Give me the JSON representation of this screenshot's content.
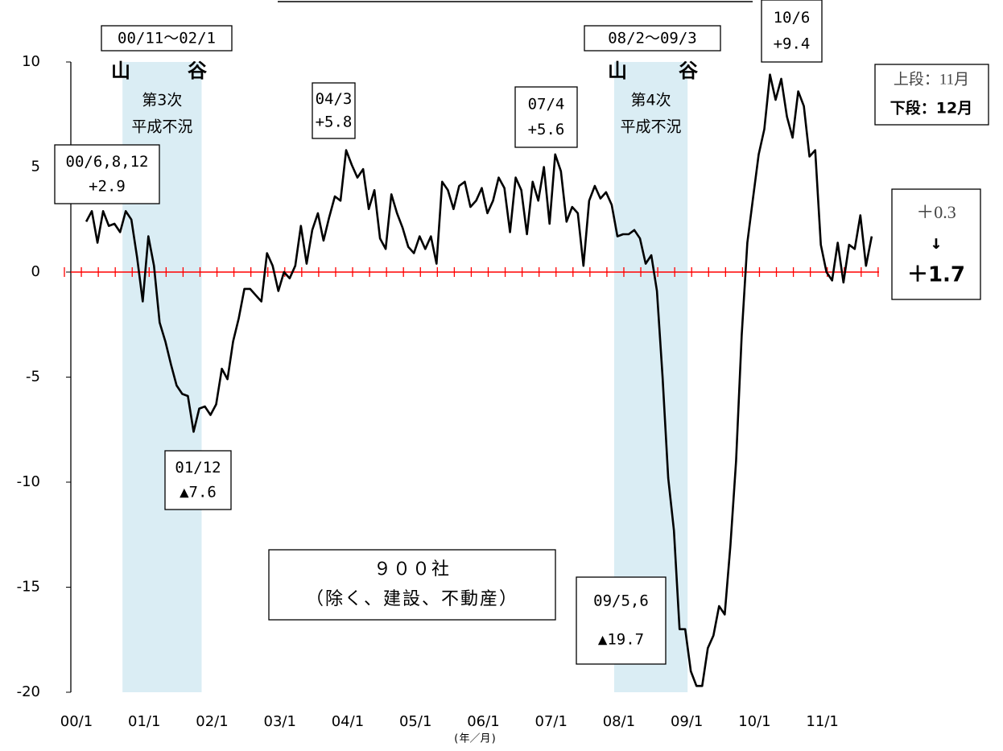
{
  "chart_data": {
    "type": "line",
    "categories": [
      "00/1",
      null,
      null,
      null,
      null,
      null,
      null,
      null,
      null,
      null,
      null,
      null,
      "01/1",
      null,
      null,
      null,
      null,
      null,
      null,
      null,
      null,
      null,
      null,
      null,
      "02/1",
      null,
      null,
      null,
      null,
      null,
      null,
      null,
      null,
      null,
      null,
      null,
      "03/1",
      null,
      null,
      null,
      null,
      null,
      null,
      null,
      null,
      null,
      null,
      null,
      "04/1",
      null,
      null,
      null,
      null,
      null,
      null,
      null,
      null,
      null,
      null,
      null,
      "05/1",
      null,
      null,
      null,
      null,
      null,
      null,
      null,
      null,
      null,
      null,
      null,
      "06/1",
      null,
      null,
      null,
      null,
      null,
      null,
      null,
      null,
      null,
      null,
      null,
      "07/1",
      null,
      null,
      null,
      null,
      null,
      null,
      null,
      null,
      null,
      null,
      null,
      "08/1",
      null,
      null,
      null,
      null,
      null,
      null,
      null,
      null,
      null,
      null,
      null,
      "09/1",
      null,
      null,
      null,
      null,
      null,
      null,
      null,
      null,
      null,
      null,
      null,
      "10/1",
      null,
      null,
      null,
      null,
      null,
      null,
      null,
      null,
      null,
      null,
      null,
      "11/1",
      null,
      null,
      null,
      null,
      null,
      null,
      null,
      null,
      null,
      null,
      null
    ],
    "series": [
      {
        "color": "#000000",
        "values": [
          null,
          null,
          null,
          null,
          2.4,
          2.9,
          1.4,
          2.9,
          2.2,
          2.3,
          1.9,
          2.9,
          2.5,
          0.7,
          -1.4,
          1.7,
          0.3,
          -2.4,
          -3.3,
          -4.4,
          -5.4,
          -5.8,
          -5.9,
          -7.6,
          -6.5,
          -6.4,
          -6.8,
          -6.3,
          -4.6,
          -5.1,
          -3.3,
          -2.2,
          -0.8,
          -0.8,
          -1.1,
          -1.4,
          0.9,
          0.3,
          -0.9,
          0.0,
          -0.3,
          0.3,
          2.2,
          0.4,
          2.0,
          2.8,
          1.5,
          2.6,
          3.6,
          3.4,
          5.8,
          5.1,
          4.5,
          4.9,
          3.0,
          3.9,
          1.6,
          1.1,
          3.7,
          2.8,
          2.1,
          1.2,
          0.9,
          1.7,
          1.1,
          1.7,
          0.4,
          4.3,
          3.9,
          3.0,
          4.1,
          4.3,
          3.1,
          3.4,
          4.0,
          2.8,
          3.4,
          4.5,
          4.0,
          1.9,
          4.5,
          3.9,
          1.8,
          4.3,
          3.4,
          5.0,
          2.3,
          5.6,
          4.8,
          2.4,
          3.1,
          2.8,
          0.3,
          3.4,
          4.1,
          3.5,
          3.8,
          3.2,
          1.7,
          1.8,
          1.8,
          2.0,
          1.6,
          0.4,
          0.8,
          -0.9,
          -5.0,
          -9.8,
          -12.3,
          -17.0,
          -17.0,
          -19.0,
          -19.7,
          -19.7,
          -17.9,
          -17.3,
          -15.9,
          -16.3,
          -13.0,
          -9.0,
          -3.0,
          1.4,
          3.5,
          5.6,
          6.8,
          9.4,
          8.2,
          9.2,
          7.4,
          6.4,
          8.6,
          7.9,
          5.5,
          5.8,
          1.3,
          0.0,
          -0.4,
          1.4,
          -0.5,
          1.3,
          1.1,
          2.7,
          0.3,
          1.7
        ]
      }
    ],
    "ylim": [
      -20,
      10
    ],
    "yticks": [
      -20,
      -15,
      -10,
      -5,
      0,
      5,
      10
    ],
    "zero_line_color": "#ff0000",
    "shade_color": "#daedf4",
    "x_label": "(年／月)",
    "recessions": [
      {
        "period": "00/11～02/1",
        "peak": "山",
        "trough": "谷",
        "name": [
          "第3次",
          "平成不況"
        ]
      },
      {
        "period": "08/2～09/3",
        "peak": "山",
        "trough": "谷",
        "name": [
          "第4次",
          "平成不況"
        ]
      }
    ],
    "callouts": [
      {
        "lines": [
          "00/6,8,12",
          "+2.9"
        ]
      },
      {
        "lines": [
          "01/12",
          "▲7.6"
        ]
      },
      {
        "lines": [
          "04/3",
          "+5.8"
        ]
      },
      {
        "lines": [
          "07/4",
          "+5.6"
        ]
      },
      {
        "lines": [
          "09/5,6",
          "▲19.7"
        ]
      },
      {
        "lines": [
          "10/6",
          "+9.4"
        ]
      }
    ],
    "subtitle": [
      "９００社",
      "（除く、建設、不動産）"
    ],
    "legend_note": [
      "上段：11月",
      "下段：12月"
    ],
    "latest": [
      "＋0.3",
      "↓",
      "＋1.7"
    ]
  }
}
